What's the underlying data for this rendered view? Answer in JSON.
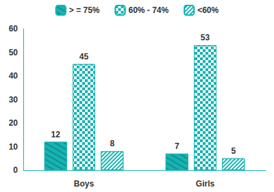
{
  "chart_data": {
    "type": "bar",
    "categories": [
      "Boys",
      "Girls"
    ],
    "series": [
      {
        "name": "> = 75%",
        "color": "#17b3b3",
        "values": [
          12,
          7
        ]
      },
      {
        "name": "60% - 74%",
        "color": "#17b3b3",
        "values": [
          45,
          53
        ]
      },
      {
        "name": "<60%",
        "color": "#17b3b3",
        "values": [
          8,
          5
        ]
      }
    ],
    "ylim": [
      0,
      60
    ],
    "yticks": [
      0,
      10,
      20,
      30,
      40,
      50,
      60
    ],
    "grid": false,
    "legend": "top",
    "data_labels": true
  }
}
